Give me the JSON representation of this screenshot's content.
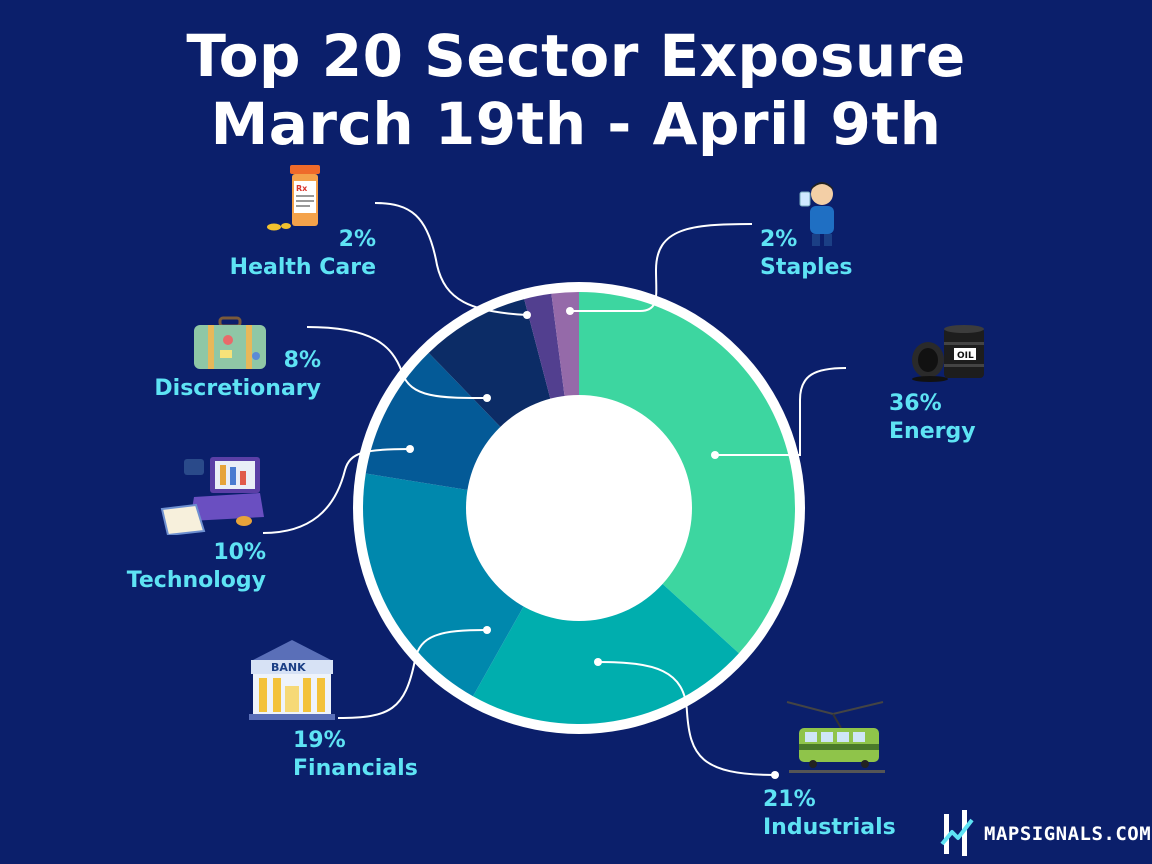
{
  "title": {
    "line1": "Top 20 Sector Exposure",
    "line2": "March 19th - April 9th"
  },
  "chart_data": {
    "type": "pie",
    "donut": true,
    "title": "Top 20 Sector Exposure March 19th - April 9th",
    "slices": [
      {
        "name": "Energy",
        "value": 36,
        "label": "36%",
        "color": "#3dd6a0",
        "icon": "oil-barrel-icon"
      },
      {
        "name": "Industrials",
        "value": 21,
        "label": "21%",
        "color": "#00aeae",
        "icon": "train-icon"
      },
      {
        "name": "Financials",
        "value": 19,
        "label": "19%",
        "color": "#0088ad",
        "icon": "bank-icon"
      },
      {
        "name": "Technology",
        "value": 10,
        "label": "10%",
        "color": "#045a97",
        "icon": "laptop-icon"
      },
      {
        "name": "Discretionary",
        "value": 8,
        "label": "8%",
        "color": "#0c2c66",
        "icon": "suitcase-icon"
      },
      {
        "name": "Health Care",
        "value": 2,
        "label": "2%",
        "color": "#523f8f",
        "icon": "pill-bottle-icon"
      },
      {
        "name": "Staples",
        "value": 2,
        "label": "2%",
        "color": "#956aa9",
        "icon": "person-drinking-icon"
      }
    ]
  },
  "icon_texts": {
    "oil": "OIL",
    "bank": "BANK",
    "rx": "Rx"
  },
  "brand": {
    "text": "MAPSIGNALS.COM"
  }
}
